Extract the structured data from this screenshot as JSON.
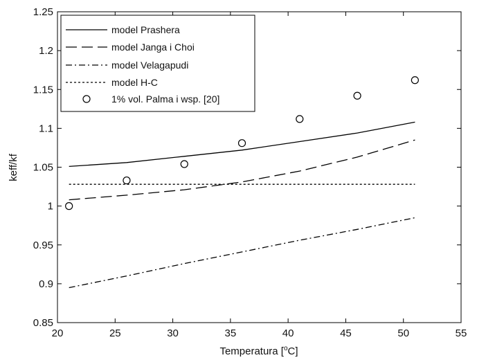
{
  "chart_data": {
    "type": "line",
    "xlabel": "Temperatura [",
    "xlabel_unit_sup": "o",
    "xlabel_unit": "C]",
    "ylabel": "keff/kf",
    "xlim": [
      20,
      55
    ],
    "ylim": [
      0.85,
      1.25
    ],
    "xticks": [
      "20",
      "25",
      "30",
      "35",
      "40",
      "45",
      "50",
      "55"
    ],
    "yticks": [
      "0.85",
      "0.9",
      "0.95",
      "1",
      "1.05",
      "1.1",
      "1.15",
      "1.2",
      "1.25"
    ],
    "grid": false,
    "legend_position": "top-left",
    "series": [
      {
        "name": "model Prashera",
        "style": "solid",
        "x": [
          21,
          26,
          31,
          36,
          41,
          46,
          51
        ],
        "y": [
          1.051,
          1.056,
          1.064,
          1.072,
          1.083,
          1.094,
          1.108
        ]
      },
      {
        "name": "model Janga i Choi",
        "style": "long-dash",
        "x": [
          21,
          26,
          31,
          36,
          41,
          46,
          51
        ],
        "y": [
          1.008,
          1.014,
          1.021,
          1.031,
          1.045,
          1.063,
          1.085
        ]
      },
      {
        "name": "model Velagapudi",
        "style": "dash-dot",
        "x": [
          21,
          26,
          31,
          36,
          41,
          46,
          51
        ],
        "y": [
          0.895,
          0.91,
          0.926,
          0.941,
          0.956,
          0.97,
          0.985
        ]
      },
      {
        "name": "model H-C",
        "style": "dotted",
        "x": [
          21,
          51
        ],
        "y": [
          1.028,
          1.028
        ]
      },
      {
        "name": "1% vol. Palma i wsp. [20]",
        "style": "circle-markers",
        "x": [
          21,
          26,
          31,
          36,
          41,
          46,
          51
        ],
        "y": [
          1.0,
          1.033,
          1.054,
          1.081,
          1.112,
          1.142,
          1.162
        ]
      }
    ]
  }
}
